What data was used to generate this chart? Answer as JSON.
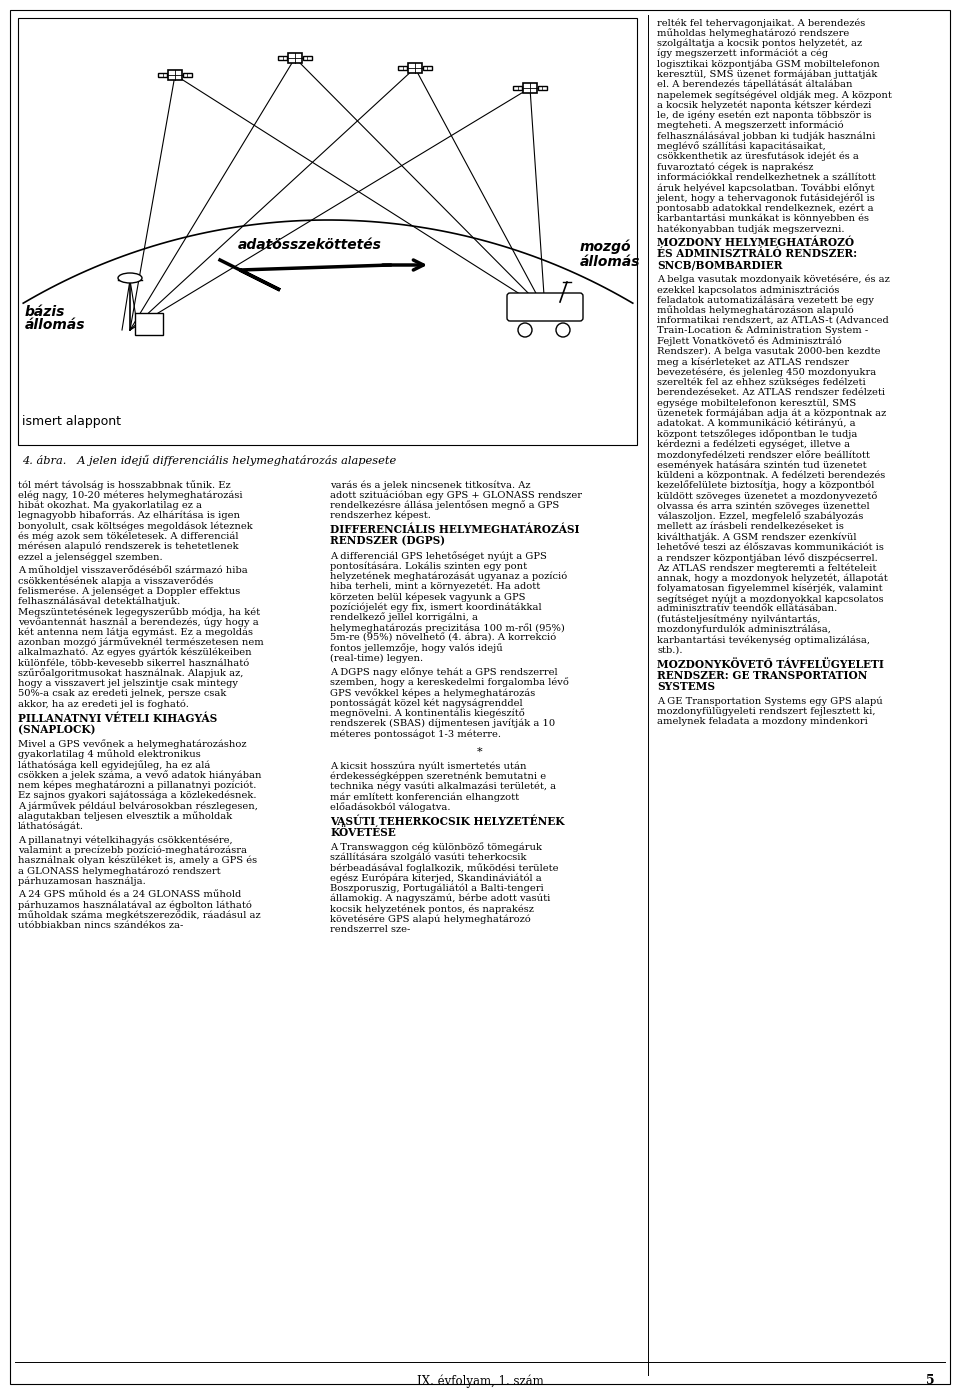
{
  "page_width": 9.6,
  "page_height": 13.94,
  "bg_color": "#ffffff",
  "figure_caption": "4. ábra.   A jelen idejű differenciális helymeghatározás alapesete",
  "footer_text": "IX. évfolyam, 1. szám",
  "footer_page": "5",
  "col1_paragraphs": [
    "tól mért távolság is hosszabbnak tűnik. Ez elég nagy, 10-20 méteres helymeghatározási hibát okozhat. Ma gyakorlatilag ez a legnagyobb hibaforrás. Az elhárítása is igen bonyolult, csak költséges megoldások léteznek és még azok sem tökéletesek. A differenciál mérésen alapuló rendszerek is tehetetlenek ezzel a jelenséggel szemben.",
    "A műholdjel visszaverődéséből származó hiba csökkentésének alapja a visszaverődés felismerése. A jelenséget a Doppler effektus felhasználásával detektálhatjuk. Megszüntetésének legegyszerűbb módja, ha két vevőantennát használ a berendezés, úgy hogy a két antenna nem látja egymást. Ez a megoldás azonban mozgó járműveknél természetesen nem alkalmazható. Az egyes gyártók készülékeiben különféle, több-kevesebb sikerrel használható szűrőalgoritmusokat használnak. Alapjuk az, hogy a visszavert jel jelszintje csak mintegy 50%-a csak az eredeti jelnek, persze csak akkor, ha az eredeti jel is fogható.",
    "PILLANATNYI VÉTELI KIHAGYÁS\n(SNAPLOCK)",
    "Mivel a GPS vevőnek a helymeghatározáshoz gyakorlatilag 4 műhold elektronikus láthatósága kell egyidejűleg, ha ez alá csökken a jelek száma, a vevő adatok hiányában nem képes meghatározni a pillanatnyi pozíciót. Ez sajnos gyakori sajátossága a közlekedésnek. A járművek például belvárosokban részlegesen, alagutakban teljesen elvesztik a műholdak láthatóságát.",
    "A pillanatnyi vételkihagyás csökkentésére, valamint a precízebb pozíció-meghatározásra használnak olyan készüléket is, amely a GPS és a GLONASS helymeghatározó rendszert párhuzamosan használja.",
    "A 24 GPS műhold és a 24 GLONASS műhold párhuzamos használatával az égbolton látható műholdak száma megkétszereződik, ráadásul az utóbbiakban nincs szándékos za-"
  ],
  "col2_paragraphs": [
    "varás és a jelek nincsenek titkosítva. Az adott szituációban egy GPS + GLONASS rendszer rendelkezésre állása jelentősen megnő a GPS rendszerhez képest.",
    "DIFFERENCIÁLIS HELYMEGHATÁROZÁSI\nRENDSZER (DGPS)",
    "A differenciál GPS lehetőséget nyújt a GPS pontosítására. Lokális szinten egy pont helyzetének meghatározását ugyanaz a pozíció hiba terheli, mint a környezetét. Ha adott körzeten belül képesek vagyunk a GPS pozíciójelét egy fix, ismert koordinátákkal rendelkező jellel korrigálni, a helymeghatározás precizitása 100 m-ről (95%) 5m-re (95%) növelhető (4. ábra). A korrekció fontos jellemzője, hogy valós idejű (real-time) legyen.",
    "A DGPS nagy előnye tehát a GPS rendszerrel szemben, hogy a kereskedelmi forgalomba lévő GPS vevőkkel képes a helymeghatározás pontosságát közel két nagyságrenddel megnövelni. A kontinentális kiegészítő rendszerek (SBAS) díjmentesen javítják a 10 méteres pontosságot 1-3 méterre.",
    "*",
    "A kicsit hosszúra nyúlt ismertetés után érdekességképpen szeretnénk bemutatni e technika négy vasúti alkalmazási területét, a már említett konferencián elhangzott előadásokból válogatva.",
    "VASÚTI TEHERKOCSIK HELYZETÉNEK\nKÖVETÉSE",
    "A Transwaggon cég különböző tömegáruk szállítására szolgáló vasúti teherkocsik bérbeadásával foglalkozik, működési területe egész Európára kiterjed, Skandináviától a Boszporuszig, Portugáliától a Balti-tengeri államokig. A nagyszámú, bérbe adott vasúti kocsik helyzetének pontos, és naprakész követésére GPS alapú helymeghatározó rendszerrel sze-"
  ],
  "col3_paragraphs": [
    "relték fel tehervagonjaikat. A berendezés műholdas helymeghatározó rendszere szolgáltatja a kocsik pontos helyzetét, az így megszerzett információt a cég logisztikai központjába GSM mobiltelefonon keresztül, SMS üzenet formájában juttatják el. A berendezés tápellátását általában napelemek segítségével oldják meg. A központ a kocsik helyzetét naponta kétszer kérdezi le, de igény esetén ezt naponta többször is megteheti. A megszerzett információ felhasználásával jobban ki tudják használni meglévő szállítási kapacitásaikat, csökkenthetik az üresfutások idejét és a fuvaroztató cégek is naprakész információkkal rendelkezhetnek a szállított áruk helyével kapcsolatban. További előnyt jelent, hogy a tehervagonok futásidejéről is pontosabb adatokkal rendelkeznek, ezért a karbantartási munkákat is könnyebben és hatékonyabban tudják megszervezni.",
    "MOZDONY HELYMEGHATÁROZÓ\nÉS ADMINISZTRÁLÓ RENDSZER:\nSNCB/BOMBARDIER",
    "A belga vasutak mozdonyaik követésére, és az ezekkel kapcsolatos adminisztrációs feladatok automatizálására vezetett be egy műholdas helymeghatározáson alapuló informatikai rendszert, az ATLAS-t (Advanced Train-Location & Administration System - Fejlett Vonatkövető és Adminisztráló Rendszer). A belga vasutak 2000-ben kezdte meg a kísérleteket az ATLAS rendszer bevezetésére, és jelenleg 450 mozdonyukra szerelték fel az ehhez szükséges fedélzeti berendezéseket. Az ATLAS rendszer fedélzeti egysége mobiltelefonon keresztül, SMS üzenetek formájában adja át a központnak az adatokat. A kommunikáció kétirányú, a központ tetszőleges időpontban le tudja kérdezni a fedélzeti egységet, illetve a mozdonyfedélzeti rendszer előre beállított események hatására szintén tud üzenetet küldeni a központnak. A fedélzeti berendezés kezelőfelülete biztosítja, hogy a központból küldött szöveges üzenetet a mozdonyvezető olvassa és arra szintén szöveges üzenettel válaszoljon. Ezzel, megfelelő szabályozás mellett az írásbeli rendelkezéseket is kiválthatják. A GSM rendszer ezenkívül lehetővé teszi az élőszavas kommunikációt is a rendszer központjában lévő diszpécserrel. Az ATLAS rendszer megteremti a feltételeit annak, hogy a mozdonyok helyzetét, állapotát folyamatosan figyelemmel kísérjék, valamint segítséget nyújt a mozdonyokkal kapcsolatos adminisztratív teendők ellátásában. (futásteljesítmény nyilvántartás, mozdonyfurdulók adminisztrálása, karbantartási tevékenység optimalizálása, stb.).",
    "MOZDONYKÖVETŐ TÁVFELÜGYELETI\nRENDSZER: GE TRANSPORTATION\nSYSTEMS",
    "A GE Transportation Systems egy GPS alapú mozdonyfülügyeleti rendszert fejlesztett ki, amelynek feladata a mozdony mindenkori"
  ]
}
